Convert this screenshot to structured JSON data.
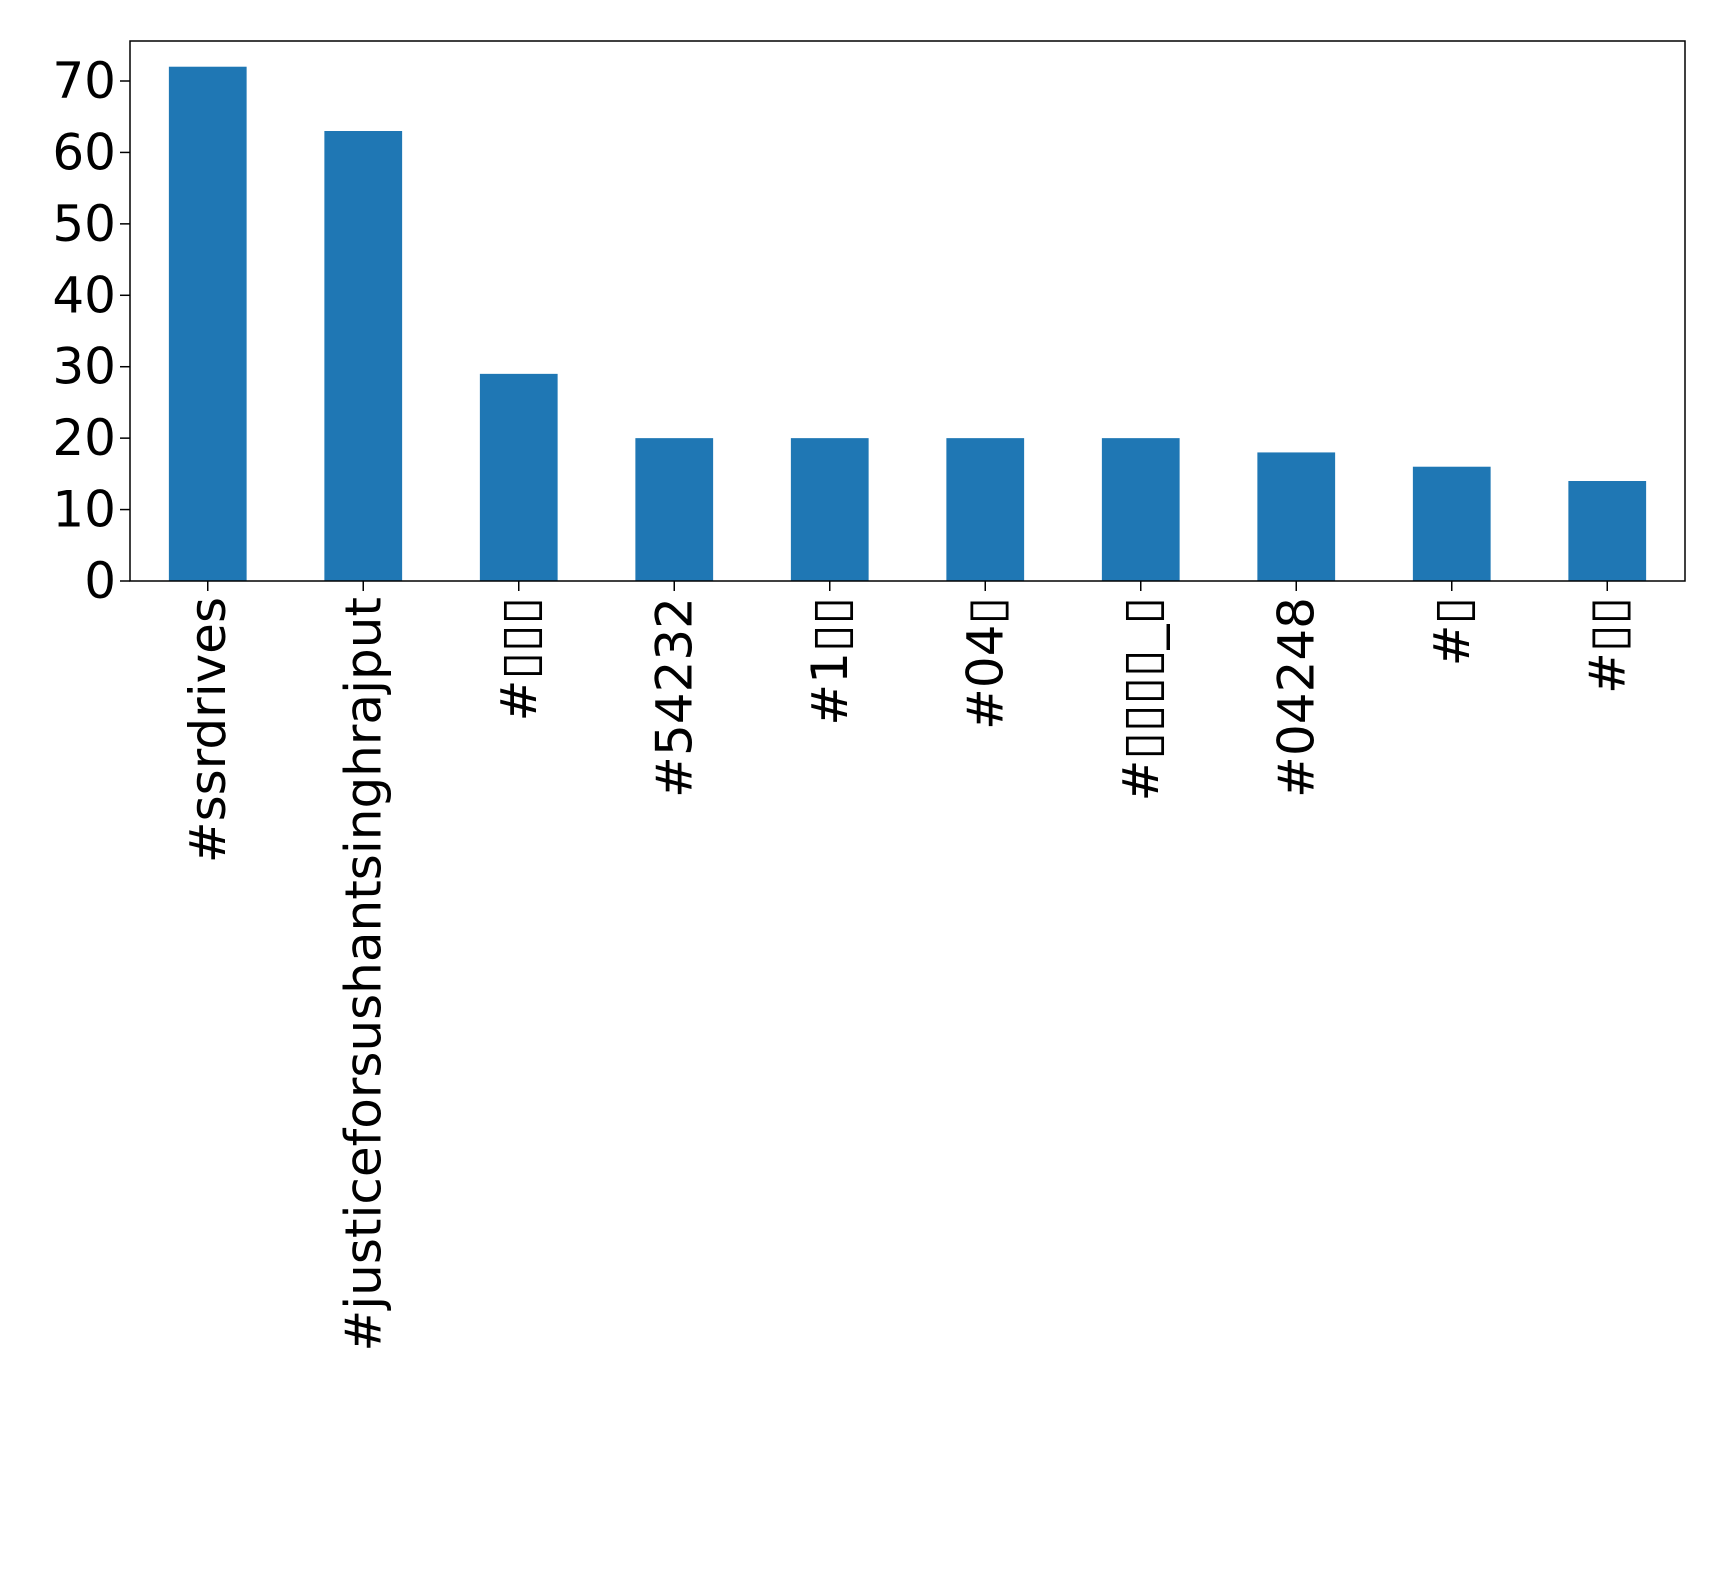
{
  "chart_data": {
    "type": "bar",
    "title": "",
    "xlabel": "",
    "ylabel": "",
    "categories": [
      "#ssrdrives",
      "#justiceforsushantsinghrajput",
      "#▯▯▯",
      "#54232",
      "#1▯▯",
      "#04▯",
      "#▯▯▯▯_▯",
      "#04248",
      "#▯",
      "#▯▯"
    ],
    "values": [
      72,
      63,
      29,
      20,
      20,
      20,
      20,
      18,
      16,
      14
    ],
    "ylim": [
      0,
      75.6
    ],
    "yticks": [
      "0",
      "10",
      "20",
      "30",
      "40",
      "50",
      "60",
      "70"
    ],
    "grid": false,
    "legend": "none",
    "colors": {
      "bar": "#1f77b4",
      "axes": "#000000",
      "background": "#ffffff"
    }
  }
}
